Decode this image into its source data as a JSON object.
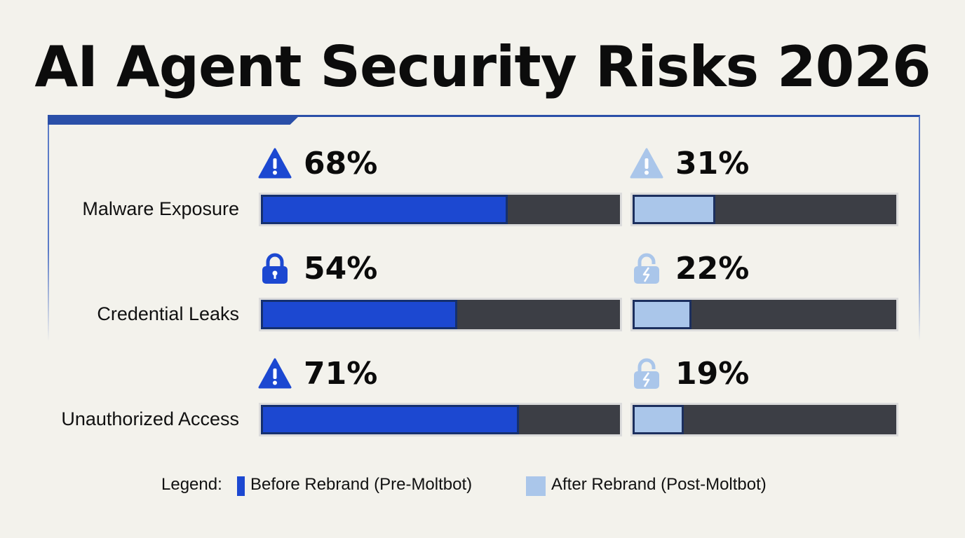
{
  "title": "AI Agent Security Risks 2026",
  "colors": {
    "before": "#1c48d1",
    "after": "#aac6ea",
    "track": "#3c3e45",
    "accent": "#2a4fa8"
  },
  "legend": {
    "title": "Legend:",
    "before_label": "Before Rebrand (Pre-Moltbot)",
    "after_label": "After Rebrand (Post-Moltbot)"
  },
  "chart_data": {
    "type": "bar",
    "title": "AI Agent Security Risks 2026",
    "categories": [
      "Malware Exposure",
      "Credential Leaks",
      "Unauthorized Access"
    ],
    "series": [
      {
        "name": "Before Rebrand (Pre-Moltbot)",
        "values": [
          68,
          54,
          71
        ],
        "labels": [
          "68%",
          "54%",
          "71%"
        ],
        "icons": [
          "warning-icon",
          "lock-icon",
          "warning-icon"
        ]
      },
      {
        "name": "After Rebrand (Post-Moltbot)",
        "values": [
          31,
          22,
          19
        ],
        "labels": [
          "31%",
          "22%",
          "19%"
        ],
        "icons": [
          "warning-icon",
          "broken-lock-icon",
          "broken-lock-icon"
        ]
      }
    ],
    "ylim": [
      0,
      100
    ],
    "legend": "bottom"
  }
}
